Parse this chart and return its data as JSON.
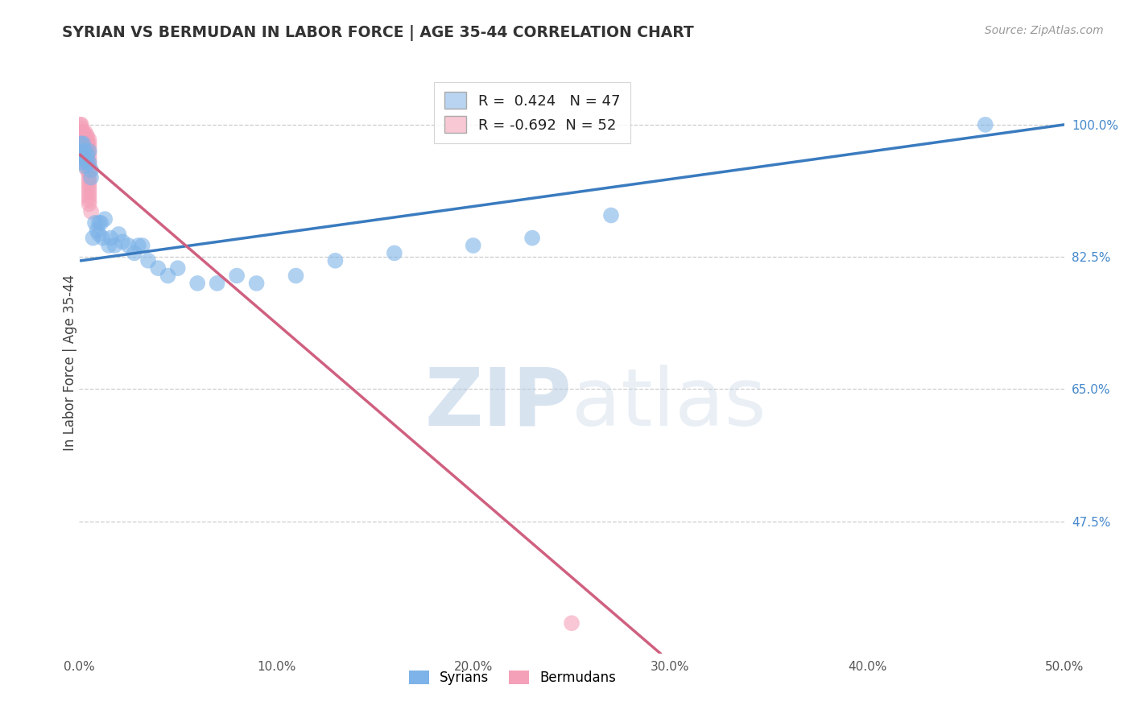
{
  "title": "SYRIAN VS BERMUDAN IN LABOR FORCE | AGE 35-44 CORRELATION CHART",
  "source": "Source: ZipAtlas.com",
  "ylabel": "In Labor Force | Age 35-44",
  "xmin": 0.0,
  "xmax": 0.5,
  "ymin": 0.3,
  "ymax": 1.07,
  "yticks": [
    0.475,
    0.65,
    0.825,
    1.0
  ],
  "ytick_labels": [
    "47.5%",
    "65.0%",
    "82.5%",
    "100.0%"
  ],
  "xticks": [
    0.0,
    0.1,
    0.2,
    0.3,
    0.4,
    0.5
  ],
  "xtick_labels": [
    "0.0%",
    "10.0%",
    "20.0%",
    "30.0%",
    "40.0%",
    "50.0%"
  ],
  "syrian_R": 0.424,
  "syrian_N": 47,
  "bermudan_R": -0.692,
  "bermudan_N": 52,
  "blue_color": "#7db3e8",
  "pink_color": "#f4a0b8",
  "blue_line_color": "#3a7bbf",
  "pink_line_color": "#d06080",
  "legend_box_color_blue": "#b8d4f0",
  "legend_box_color_pink": "#f8c8d4",
  "watermark_zip": "ZIP",
  "watermark_atlas": "atlas",
  "syrians_x": [
    0.001,
    0.001,
    0.001,
    0.002,
    0.002,
    0.002,
    0.003,
    0.003,
    0.003,
    0.004,
    0.004,
    0.005,
    0.005,
    0.006,
    0.006,
    0.007,
    0.008,
    0.009,
    0.01,
    0.01,
    0.011,
    0.012,
    0.013,
    0.015,
    0.016,
    0.018,
    0.02,
    0.022,
    0.025,
    0.028,
    0.03,
    0.032,
    0.035,
    0.04,
    0.045,
    0.05,
    0.06,
    0.07,
    0.08,
    0.09,
    0.11,
    0.13,
    0.16,
    0.2,
    0.23,
    0.27,
    0.46
  ],
  "syrians_y": [
    0.975,
    0.965,
    0.96,
    0.975,
    0.96,
    0.95,
    0.965,
    0.955,
    0.945,
    0.96,
    0.95,
    0.965,
    0.95,
    0.94,
    0.93,
    0.85,
    0.87,
    0.86,
    0.87,
    0.855,
    0.87,
    0.85,
    0.875,
    0.84,
    0.85,
    0.84,
    0.855,
    0.845,
    0.84,
    0.83,
    0.84,
    0.84,
    0.82,
    0.81,
    0.8,
    0.81,
    0.79,
    0.79,
    0.8,
    0.79,
    0.8,
    0.82,
    0.83,
    0.84,
    0.85,
    0.88,
    1.0
  ],
  "bermudans_x": [
    0.0005,
    0.0005,
    0.001,
    0.001,
    0.001,
    0.001,
    0.001,
    0.0015,
    0.0015,
    0.002,
    0.002,
    0.002,
    0.002,
    0.002,
    0.002,
    0.003,
    0.003,
    0.003,
    0.003,
    0.003,
    0.003,
    0.003,
    0.004,
    0.004,
    0.004,
    0.004,
    0.004,
    0.004,
    0.004,
    0.004,
    0.004,
    0.004,
    0.005,
    0.005,
    0.005,
    0.005,
    0.005,
    0.005,
    0.005,
    0.005,
    0.005,
    0.005,
    0.005,
    0.005,
    0.005,
    0.005,
    0.005,
    0.005,
    0.005,
    0.005,
    0.006,
    0.25
  ],
  "bermudans_y": [
    1.0,
    0.99,
    1.0,
    0.995,
    0.99,
    0.985,
    0.98,
    0.99,
    0.985,
    0.99,
    0.985,
    0.98,
    0.975,
    0.97,
    0.965,
    0.99,
    0.985,
    0.98,
    0.975,
    0.97,
    0.965,
    0.96,
    0.985,
    0.98,
    0.975,
    0.97,
    0.965,
    0.96,
    0.955,
    0.95,
    0.945,
    0.94,
    0.98,
    0.975,
    0.97,
    0.965,
    0.96,
    0.955,
    0.95,
    0.945,
    0.94,
    0.935,
    0.93,
    0.925,
    0.92,
    0.915,
    0.91,
    0.905,
    0.9,
    0.895,
    0.885,
    0.34
  ],
  "blue_trend_x": [
    0.001,
    0.5
  ],
  "blue_trend_y": [
    0.82,
    1.0
  ],
  "pink_trend_x": [
    0.0005,
    0.295
  ],
  "pink_trend_y": [
    0.96,
    0.3
  ]
}
